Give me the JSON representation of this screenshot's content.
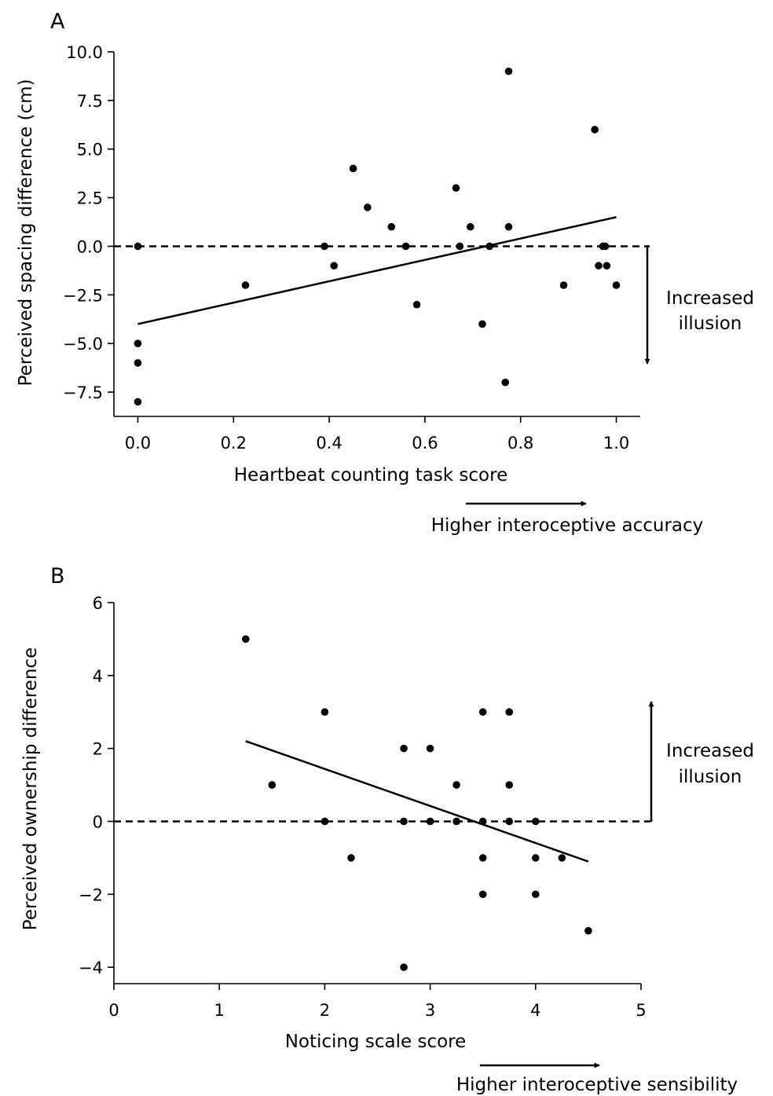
{
  "chart_data": [
    {
      "type": "scatter",
      "panel": "A",
      "title": "",
      "xlabel": "Heartbeat counting task score",
      "ylabel": "Perceived spacing difference (cm)",
      "xlim": [
        -0.05,
        1.05
      ],
      "ylim": [
        -8.75,
        10.0
      ],
      "xticks": [
        0.0,
        0.2,
        0.4,
        0.6,
        0.8,
        1.0
      ],
      "xtick_labels": [
        "0.0",
        "0.2",
        "0.4",
        "0.6",
        "0.8",
        "1.0"
      ],
      "yticks": [
        10.0,
        7.5,
        5.0,
        2.5,
        0.0,
        -2.5,
        -5.0,
        -7.5
      ],
      "ytick_labels": [
        "10.0",
        "7.5",
        "5.0",
        "2.5",
        "0.0",
        "−2.5",
        "−5.0",
        "−7.5"
      ],
      "grid": false,
      "reference_line": {
        "y": 0,
        "style": "dashed"
      },
      "fit_line": {
        "x": [
          0.0,
          1.0
        ],
        "y": [
          -4.0,
          1.5
        ]
      },
      "points": [
        {
          "x": 0.0,
          "y": 0.0
        },
        {
          "x": 0.0,
          "y": -5.0
        },
        {
          "x": 0.0,
          "y": -6.0
        },
        {
          "x": 0.0,
          "y": -8.0
        },
        {
          "x": 0.225,
          "y": -2.0
        },
        {
          "x": 0.39,
          "y": 0.0
        },
        {
          "x": 0.41,
          "y": -1.0
        },
        {
          "x": 0.45,
          "y": 4.0
        },
        {
          "x": 0.48,
          "y": 2.0
        },
        {
          "x": 0.53,
          "y": 1.0
        },
        {
          "x": 0.56,
          "y": 0.0
        },
        {
          "x": 0.583,
          "y": -3.0
        },
        {
          "x": 0.665,
          "y": 3.0
        },
        {
          "x": 0.673,
          "y": 0.0
        },
        {
          "x": 0.695,
          "y": 1.0
        },
        {
          "x": 0.72,
          "y": -4.0
        },
        {
          "x": 0.735,
          "y": 0.0
        },
        {
          "x": 0.768,
          "y": -7.0
        },
        {
          "x": 0.775,
          "y": 9.0
        },
        {
          "x": 0.775,
          "y": 1.0
        },
        {
          "x": 0.89,
          "y": -2.0
        },
        {
          "x": 0.955,
          "y": 6.0
        },
        {
          "x": 0.963,
          "y": -1.0
        },
        {
          "x": 0.972,
          "y": 0.0
        },
        {
          "x": 0.977,
          "y": 0.0
        },
        {
          "x": 0.98,
          "y": -1.0
        },
        {
          "x": 1.0,
          "y": -2.0
        }
      ],
      "side_annotation": {
        "text": [
          "Increased",
          "illusion"
        ],
        "arrow": "down"
      },
      "below_annotation": {
        "text": "Higher interoceptive accuracy",
        "arrow": "right"
      }
    },
    {
      "type": "scatter",
      "panel": "B",
      "title": "",
      "xlabel": "Noticing scale score",
      "ylabel": "Perceived ownership difference",
      "xlim": [
        0,
        5
      ],
      "ylim": [
        -4.45,
        6
      ],
      "xticks": [
        0,
        1,
        2,
        3,
        4,
        5
      ],
      "xtick_labels": [
        "0",
        "1",
        "2",
        "3",
        "4",
        "5"
      ],
      "yticks": [
        6,
        4,
        2,
        0,
        -2,
        -4
      ],
      "ytick_labels": [
        "6",
        "4",
        "2",
        "0",
        "−2",
        "−4"
      ],
      "grid": false,
      "reference_line": {
        "y": 0,
        "style": "dashed"
      },
      "fit_line": {
        "x": [
          1.25,
          4.5
        ],
        "y": [
          2.2,
          -1.1
        ]
      },
      "points": [
        {
          "x": 1.25,
          "y": 5
        },
        {
          "x": 1.5,
          "y": 1
        },
        {
          "x": 2.0,
          "y": 3
        },
        {
          "x": 2.0,
          "y": 0
        },
        {
          "x": 2.25,
          "y": -1
        },
        {
          "x": 2.75,
          "y": 2
        },
        {
          "x": 2.75,
          "y": 0
        },
        {
          "x": 2.75,
          "y": -4
        },
        {
          "x": 3.0,
          "y": 2
        },
        {
          "x": 3.0,
          "y": 0
        },
        {
          "x": 3.25,
          "y": 1
        },
        {
          "x": 3.25,
          "y": 0
        },
        {
          "x": 3.5,
          "y": 3
        },
        {
          "x": 3.5,
          "y": 0
        },
        {
          "x": 3.5,
          "y": -1
        },
        {
          "x": 3.5,
          "y": -2
        },
        {
          "x": 3.75,
          "y": 3
        },
        {
          "x": 3.75,
          "y": 1
        },
        {
          "x": 3.75,
          "y": 0
        },
        {
          "x": 4.0,
          "y": 0
        },
        {
          "x": 4.0,
          "y": -1
        },
        {
          "x": 4.0,
          "y": -2
        },
        {
          "x": 4.25,
          "y": -1
        },
        {
          "x": 4.5,
          "y": -3
        }
      ],
      "side_annotation": {
        "text": [
          "Increased",
          "illusion"
        ],
        "arrow": "up"
      },
      "below_annotation": {
        "text": "Higher interoceptive sensibility",
        "arrow": "right"
      }
    }
  ]
}
